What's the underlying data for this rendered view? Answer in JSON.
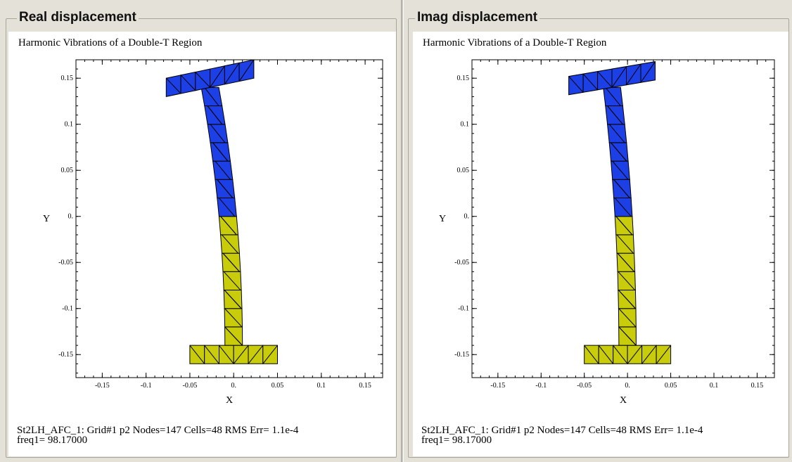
{
  "panels": [
    {
      "legend": "Real displacement",
      "chart_title": "Harmonic Vibrations of a Double-T Region",
      "status_line": "St2LH_AFC_1:  Grid#1  p2  Nodes=147 Cells=48 RMS Err= 1.1e-4",
      "freq_line": "freq1=  98.17000"
    },
    {
      "legend": "Imag displacement",
      "chart_title": "Harmonic Vibrations of a Double-T Region",
      "status_line": "St2LH_AFC_1:  Grid#1  p2  Nodes=147 Cells=48 RMS Err= 1.1e-4",
      "freq_line": "freq1=  98.17000"
    }
  ],
  "chart_data": [
    {
      "type": "mesh",
      "title": "Harmonic Vibrations of a Double-T Region",
      "xlabel": "X",
      "ylabel": "Y",
      "xlim": [
        -0.18,
        0.17
      ],
      "ylim": [
        -0.175,
        0.17
      ],
      "x_ticks": [
        -0.15,
        -0.1,
        -0.05,
        0,
        0.05,
        0.1,
        0.15
      ],
      "x_tick_labels": [
        "-0.15",
        "-0.1",
        "-0.05",
        "0.",
        "0.05",
        "0.1",
        "0.15"
      ],
      "y_ticks": [
        0.15,
        0.1,
        0.05,
        0,
        -0.05,
        -0.1,
        -0.15
      ],
      "y_tick_labels": [
        "0.15",
        "0.1",
        "0.05",
        "0.",
        "-0.05",
        "-0.1",
        "-0.15"
      ],
      "colors": {
        "upper": "#1c3fe6",
        "lower": "#c8cc0a",
        "edge": "#000000"
      },
      "region": {
        "top_flange": {
          "y": [
            0.14,
            0.16
          ],
          "x_rows": 1,
          "x_cells": 6
        },
        "web": {
          "y": [
            -0.14,
            0.14
          ],
          "cells": 14
        },
        "bottom_flange": {
          "x": [
            -0.05,
            0.05
          ],
          "y": [
            -0.16,
            -0.14
          ],
          "cells": 6
        }
      },
      "deflection": {
        "top_x_shift": -0.03,
        "top_tilt": 0.01
      }
    },
    {
      "type": "mesh",
      "title": "Harmonic Vibrations of a Double-T Region",
      "xlabel": "X",
      "ylabel": "Y",
      "xlim": [
        -0.18,
        0.17
      ],
      "ylim": [
        -0.175,
        0.17
      ],
      "x_ticks": [
        -0.15,
        -0.1,
        -0.05,
        0,
        0.05,
        0.1,
        0.15
      ],
      "x_tick_labels": [
        "-0.15",
        "-0.1",
        "-0.05",
        "0.",
        "0.05",
        "0.1",
        "0.15"
      ],
      "y_ticks": [
        0.15,
        0.1,
        0.05,
        0,
        -0.05,
        -0.1,
        -0.15
      ],
      "y_tick_labels": [
        "0.15",
        "0.1",
        "0.05",
        "0.",
        "-0.05",
        "-0.1",
        "-0.15"
      ],
      "colors": {
        "upper": "#1c3fe6",
        "lower": "#c8cc0a",
        "edge": "#000000"
      },
      "region": {
        "top_flange": {
          "y": [
            0.14,
            0.16
          ],
          "x_rows": 1,
          "x_cells": 6
        },
        "web": {
          "y": [
            -0.14,
            0.14
          ],
          "cells": 14
        },
        "bottom_flange": {
          "x": [
            -0.05,
            0.05
          ],
          "y": [
            -0.16,
            -0.14
          ],
          "cells": 6
        }
      },
      "deflection": {
        "top_x_shift": -0.02,
        "top_tilt": 0.008
      }
    }
  ]
}
